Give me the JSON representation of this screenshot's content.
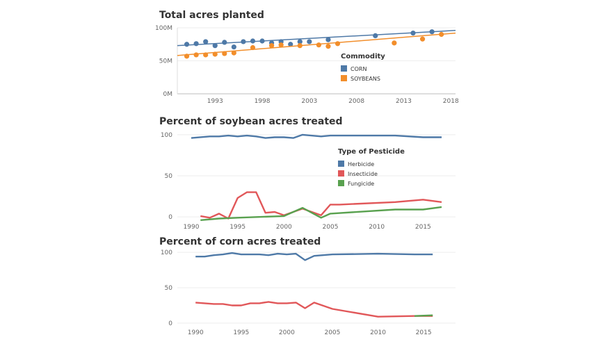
{
  "titles": {
    "chart1": "Total acres planted",
    "chart2": "Percent of soybean acres treated",
    "chart3": "Percent of corn acres treated"
  },
  "colors": {
    "blue": "#4e79a7",
    "orange": "#f28e2b",
    "red": "#e15759",
    "green": "#59a14f"
  },
  "chart_data": [
    {
      "type": "scatter",
      "title": "Total acres planted",
      "xlabel": "",
      "ylabel": "",
      "xlim": [
        1989,
        2018.5
      ],
      "ylim": [
        0,
        100
      ],
      "x_ticks": [
        1993,
        1998,
        2003,
        2008,
        2013,
        2018
      ],
      "y_ticks": [
        0,
        50,
        100
      ],
      "y_tick_labels": [
        "0M",
        "50M",
        "100M"
      ],
      "grid": true,
      "legend_title": "Commodity",
      "legend_position": "right",
      "series": [
        {
          "name": "CORN",
          "color": "#4e79a7",
          "x": [
            1990,
            1991,
            1992,
            1993,
            1994,
            1995,
            1996,
            1997,
            1998,
            1999,
            2000,
            2001,
            2002,
            2003,
            2005,
            2010,
            2014,
            2016
          ],
          "y": [
            75,
            76,
            79,
            73,
            78,
            71,
            79,
            80,
            80,
            77,
            79,
            75,
            79,
            79,
            82,
            88,
            92,
            94
          ],
          "trend": [
            73,
            96
          ]
        },
        {
          "name": "SOYBEANS",
          "color": "#f28e2b",
          "x": [
            1990,
            1991,
            1992,
            1993,
            1994,
            1995,
            1997,
            1999,
            2000,
            2002,
            2004,
            2005,
            2006,
            2012,
            2015,
            2017
          ],
          "y": [
            57,
            59,
            59,
            60,
            61,
            62,
            70,
            73,
            74,
            73,
            74,
            72,
            76,
            77,
            83,
            90
          ],
          "trend": [
            58,
            92
          ]
        }
      ]
    },
    {
      "type": "line",
      "title": "Percent of soybean acres treated",
      "xlabel": "",
      "ylabel": "",
      "xlim": [
        1988.5,
        2018.5
      ],
      "ylim": [
        -5,
        105
      ],
      "x_ticks": [
        1990,
        1995,
        2000,
        2005,
        2010,
        2015
      ],
      "y_ticks": [
        0,
        50,
        100
      ],
      "grid": true,
      "legend_title": "Type of Pesticide",
      "legend_position": "right",
      "series": [
        {
          "name": "Herbicide",
          "color": "#4e79a7",
          "x": [
            1990,
            1992,
            1993,
            1994,
            1995,
            1996,
            1997,
            1998,
            1999,
            2000,
            2001,
            2002,
            2004,
            2005,
            2012,
            2015,
            2017
          ],
          "y": [
            96,
            98,
            98,
            99,
            98,
            99,
            98,
            96,
            97,
            97,
            96,
            100,
            98,
            99,
            99,
            97,
            97
          ]
        },
        {
          "name": "Insecticide",
          "color": "#e15759",
          "x": [
            1991,
            1992,
            1993,
            1994,
            1995,
            1996,
            1997,
            1998,
            1999,
            2000,
            2002,
            2004,
            2005,
            2006,
            2012,
            2015,
            2017
          ],
          "y": [
            1,
            -1,
            4,
            -2,
            23,
            30,
            30,
            5,
            6,
            2,
            10,
            2,
            15,
            15,
            18,
            21,
            18
          ]
        },
        {
          "name": "Fungicide",
          "color": "#59a14f",
          "x": [
            1991,
            1993,
            1995,
            2000,
            2002,
            2004,
            2005,
            2012,
            2015,
            2017
          ],
          "y": [
            -4,
            -2,
            -1,
            1,
            11,
            -1,
            4,
            9,
            9,
            12
          ]
        }
      ]
    },
    {
      "type": "line",
      "title": "Percent of corn acres treated",
      "xlabel": "",
      "ylabel": "",
      "xlim": [
        1988,
        2018.5
      ],
      "ylim": [
        -5,
        105
      ],
      "x_ticks": [
        1990,
        1995,
        2000,
        2005,
        2010,
        2015
      ],
      "y_ticks": [
        0,
        50,
        100
      ],
      "grid": true,
      "series": [
        {
          "name": "Herbicide",
          "color": "#4e79a7",
          "x": [
            1990,
            1991,
            1992,
            1993,
            1994,
            1995,
            1996,
            1997,
            1998,
            1999,
            2000,
            2001,
            2002,
            2003,
            2005,
            2010,
            2014,
            2016
          ],
          "y": [
            94,
            94,
            96,
            97,
            99,
            97,
            97,
            97,
            96,
            98,
            97,
            98,
            89,
            95,
            97,
            98,
            97,
            97
          ]
        },
        {
          "name": "Insecticide",
          "color": "#e15759",
          "x": [
            1990,
            1991,
            1992,
            1993,
            1994,
            1995,
            1996,
            1997,
            1998,
            1999,
            2000,
            2001,
            2002,
            2003,
            2005,
            2010,
            2014,
            2016
          ],
          "y": [
            29,
            28,
            27,
            27,
            25,
            25,
            28,
            28,
            30,
            28,
            28,
            29,
            21,
            29,
            20,
            9,
            10,
            10
          ]
        },
        {
          "name": "Fungicide",
          "color": "#59a14f",
          "x": [
            2014,
            2016
          ],
          "y": [
            10,
            11
          ]
        }
      ]
    }
  ]
}
